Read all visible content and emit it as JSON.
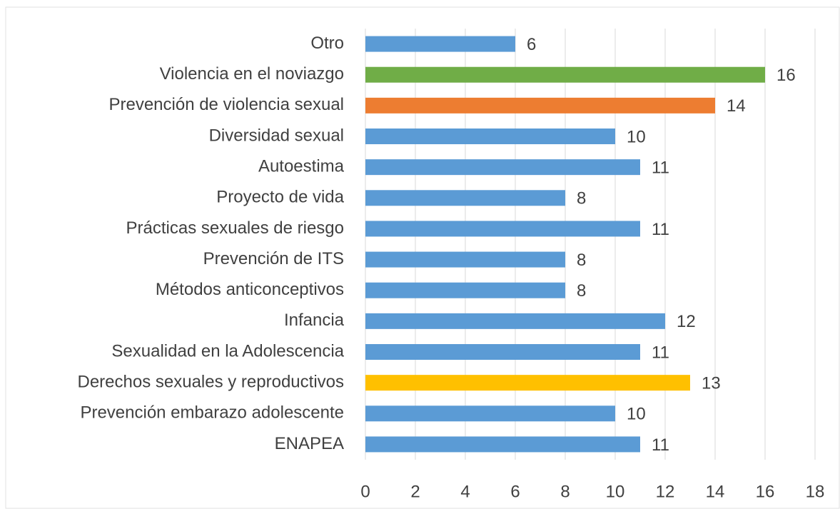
{
  "chart_data": {
    "type": "bar",
    "orientation": "horizontal",
    "categories": [
      "Otro",
      "Violencia en el noviazgo",
      "Prevención de violencia sexual",
      "Diversidad sexual",
      "Autoestima",
      "Proyecto de vida",
      "Prácticas sexuales de riesgo",
      "Prevención de ITS",
      "Métodos anticonceptivos",
      "Infancia",
      "Sexualidad en la Adolescencia",
      "Derechos sexuales y reproductivos",
      "Prevención embarazo adolescente",
      "ENAPEA"
    ],
    "values": [
      6,
      16,
      14,
      10,
      11,
      8,
      11,
      8,
      8,
      12,
      11,
      13,
      10,
      11
    ],
    "colors": [
      "#5b9bd5",
      "#70ad47",
      "#ed7d31",
      "#5b9bd5",
      "#5b9bd5",
      "#5b9bd5",
      "#5b9bd5",
      "#5b9bd5",
      "#5b9bd5",
      "#5b9bd5",
      "#5b9bd5",
      "#ffc000",
      "#5b9bd5",
      "#5b9bd5"
    ],
    "xlim": [
      0,
      18
    ],
    "xticks": [
      0,
      2,
      4,
      6,
      8,
      10,
      12,
      14,
      16,
      18
    ],
    "grid": true
  }
}
